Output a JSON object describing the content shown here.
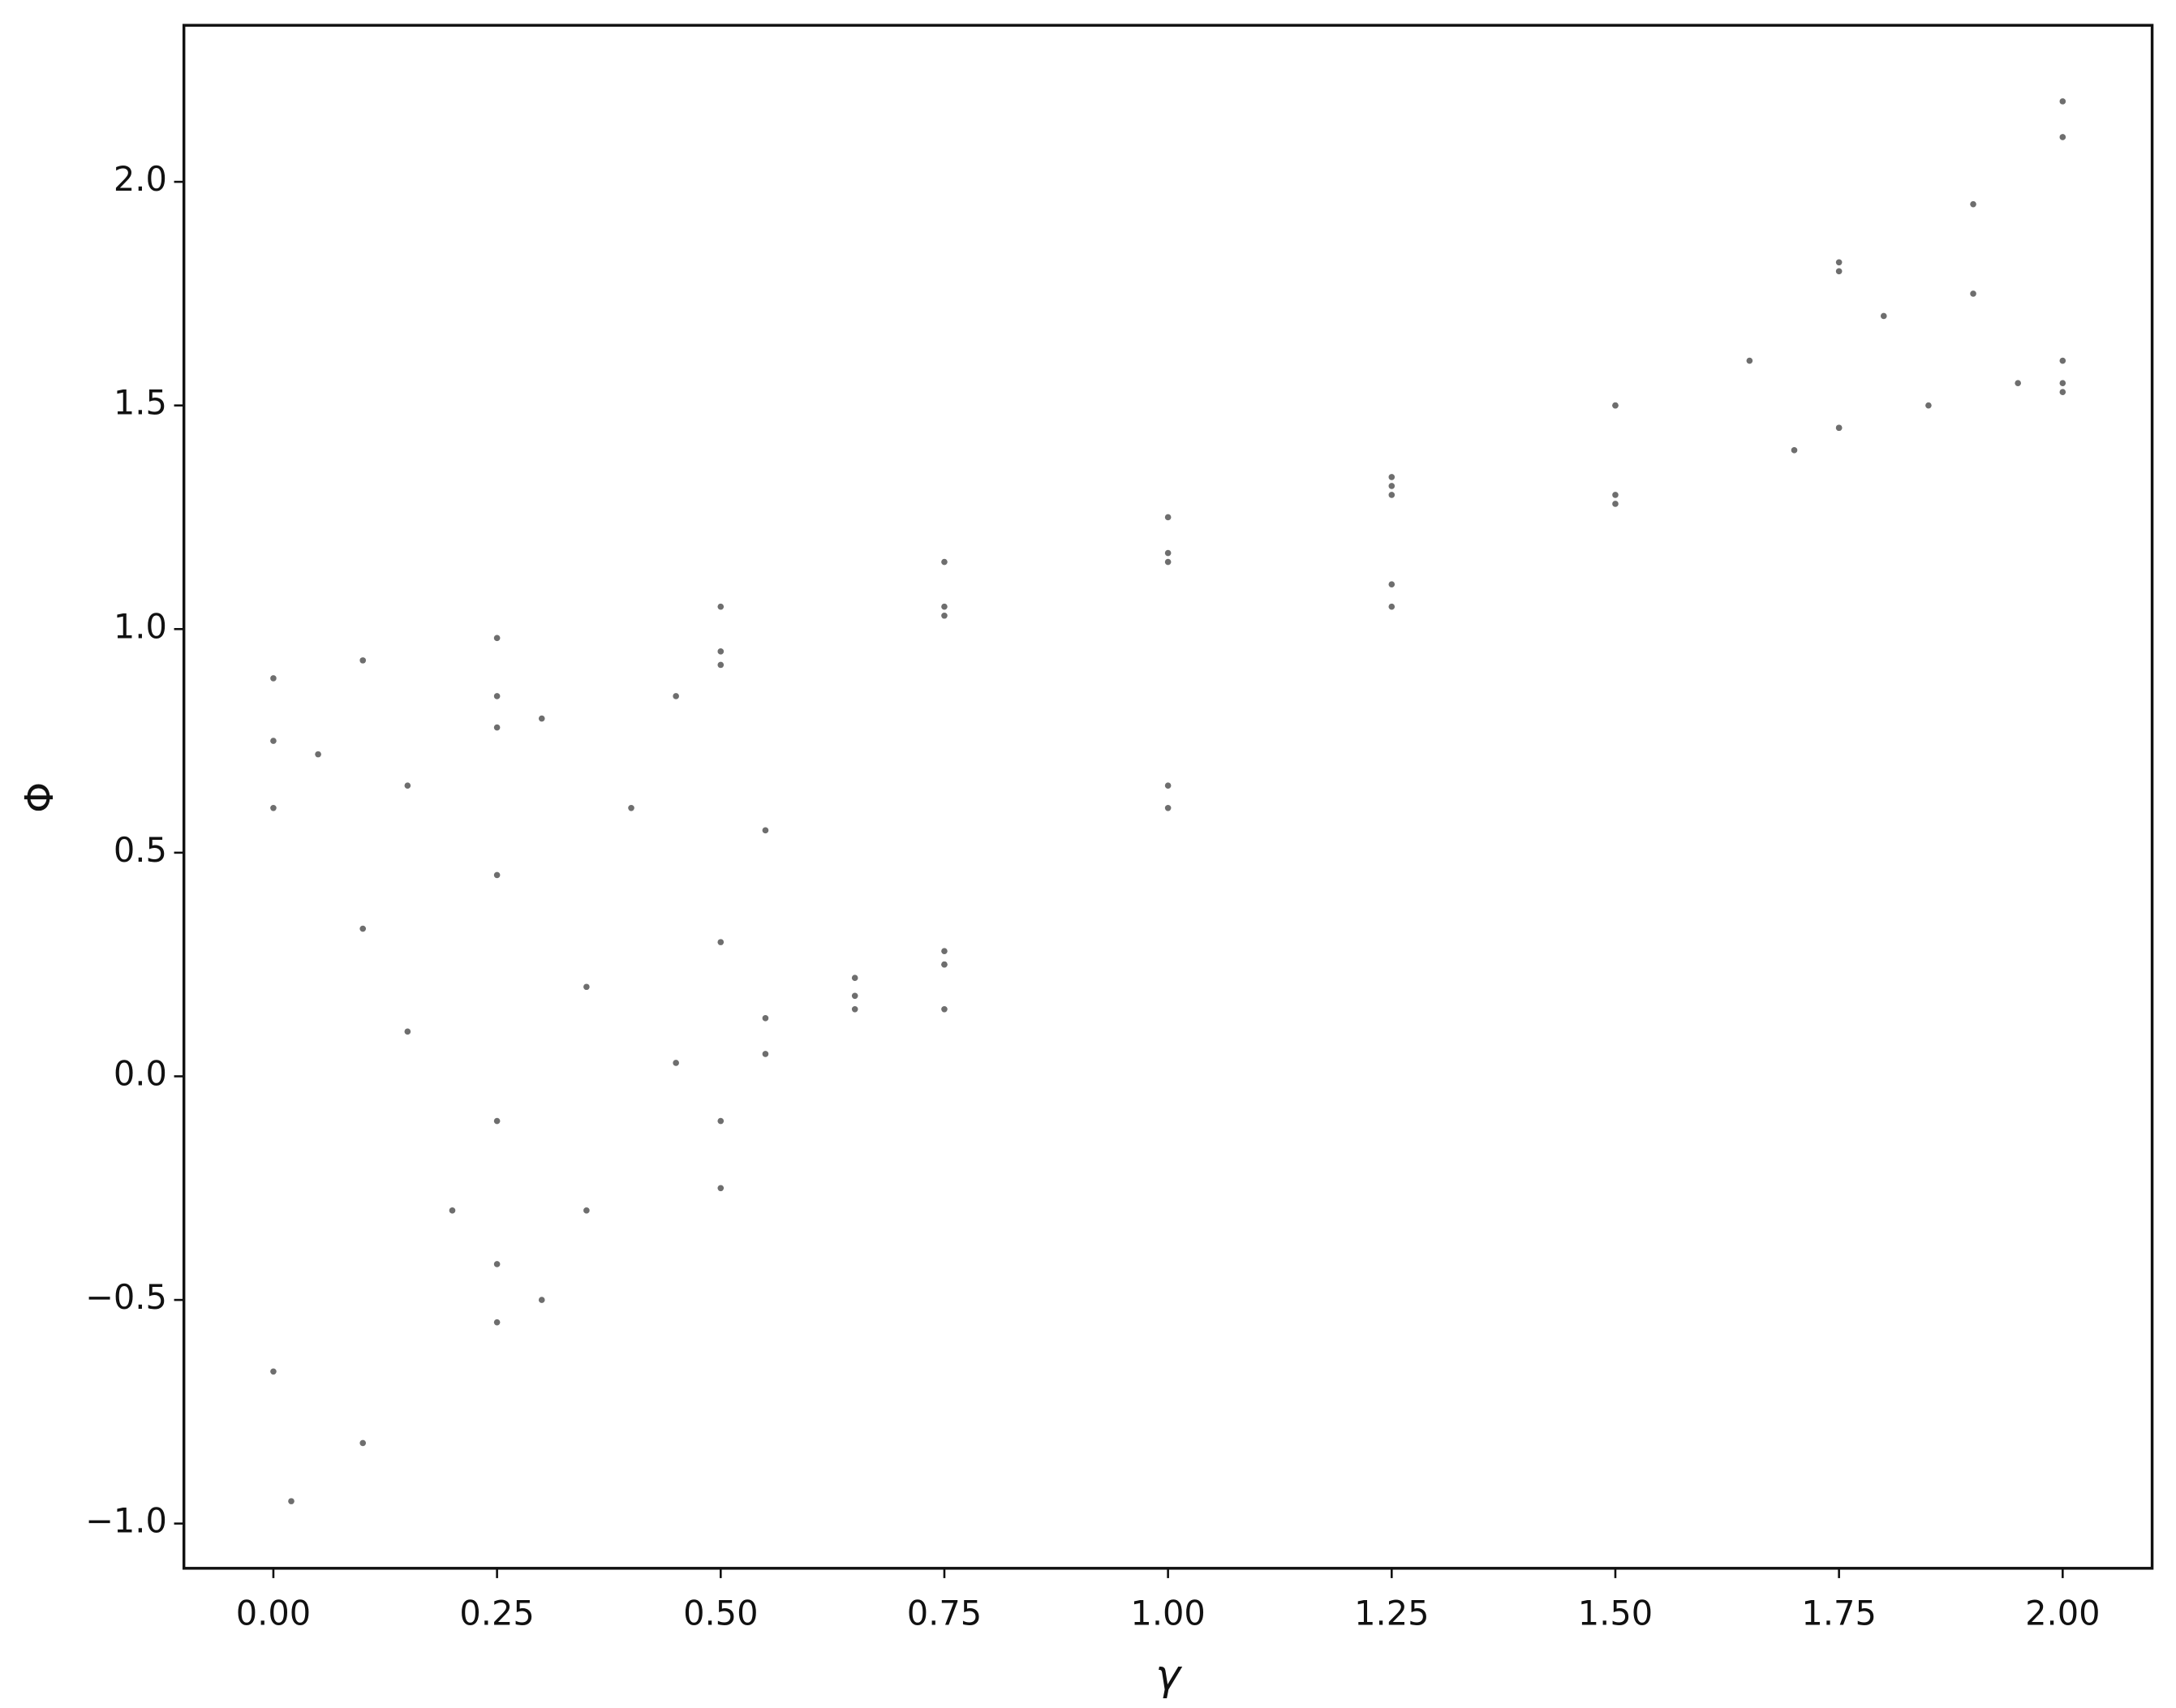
{
  "chart_data": {
    "type": "scatter",
    "xlabel": "γ",
    "ylabel": "Φ",
    "color": "#6e6e6e",
    "xlim": [
      -0.1,
      2.1
    ],
    "ylim": [
      -1.1,
      2.35
    ],
    "xticks": [
      {
        "value": 0,
        "label": "0.00"
      },
      {
        "value": 0.25,
        "label": "0.25"
      },
      {
        "value": 0.5,
        "label": "0.50"
      },
      {
        "value": 0.75,
        "label": "0.75"
      },
      {
        "value": 1,
        "label": "1.00"
      },
      {
        "value": 1.25,
        "label": "1.25"
      },
      {
        "value": 1.5,
        "label": "1.50"
      },
      {
        "value": 1.75,
        "label": "1.75"
      },
      {
        "value": 2,
        "label": "2.00"
      }
    ],
    "yticks": [
      {
        "value": -1,
        "label": "−1.0"
      },
      {
        "value": -0.5,
        "label": "−0.5"
      },
      {
        "value": 0,
        "label": "0.0"
      },
      {
        "value": 0.5,
        "label": "0.5"
      },
      {
        "value": 1,
        "label": "1.0"
      },
      {
        "value": 1.5,
        "label": "1.5"
      },
      {
        "value": 2,
        "label": "2.0"
      }
    ],
    "x": [
      0,
      0.25,
      0.5,
      0.75,
      1.0,
      1.25,
      1.5,
      1.75,
      2.0,
      0,
      0.25,
      0.5,
      0.75,
      1.0,
      1.25,
      1.5,
      1.75,
      2.0,
      0,
      0.1,
      0.25,
      0.5,
      0.75,
      1.0,
      1.25,
      0.02,
      0.1,
      0.25,
      0.5,
      0.75,
      1.0,
      1.25,
      1.5,
      1.75,
      2.0,
      0,
      0.25,
      0.5,
      0.75,
      1.0,
      1.25,
      1.5,
      2.0,
      0.05,
      0.15,
      0.25,
      0.35,
      0.45,
      0.55,
      0.65,
      0.3,
      0.4,
      0.5,
      0.55,
      0.65,
      0.75,
      0.45,
      0.55,
      0.65,
      0.75,
      0.1,
      0.15,
      0.2,
      0.3,
      0.35,
      0.25,
      1.75,
      1.8,
      1.85,
      1.9,
      1.95,
      2.0,
      1.9,
      1.7,
      1.65
    ],
    "values": [
      0.6,
      0.78,
      0.92,
      1.03,
      1.15,
      1.3,
      1.5,
      1.8,
      2.1,
      0.75,
      0.85,
      0.95,
      1.05,
      1.17,
      1.32,
      1.5,
      1.82,
      2.18,
      0.89,
      0.93,
      0.98,
      1.05,
      1.15,
      1.25,
      1.34,
      -0.95,
      -0.82,
      -0.55,
      -0.25,
      0.15,
      0.6,
      1.1,
      1.3,
      1.45,
      1.55,
      -0.66,
      -0.42,
      -0.1,
      0.25,
      0.65,
      1.05,
      1.28,
      1.6,
      0.72,
      0.65,
      0.45,
      0.2,
      0.03,
      0.05,
      0.18,
      0.8,
      0.6,
      0.3,
      0.13,
      0.15,
      0.25,
      0.85,
      0.55,
      0.22,
      0.28,
      0.33,
      0.1,
      -0.3,
      -0.5,
      -0.3,
      -0.1,
      1.45,
      1.7,
      1.5,
      1.95,
      1.55,
      1.53,
      1.75,
      1.4,
      1.6
    ]
  }
}
